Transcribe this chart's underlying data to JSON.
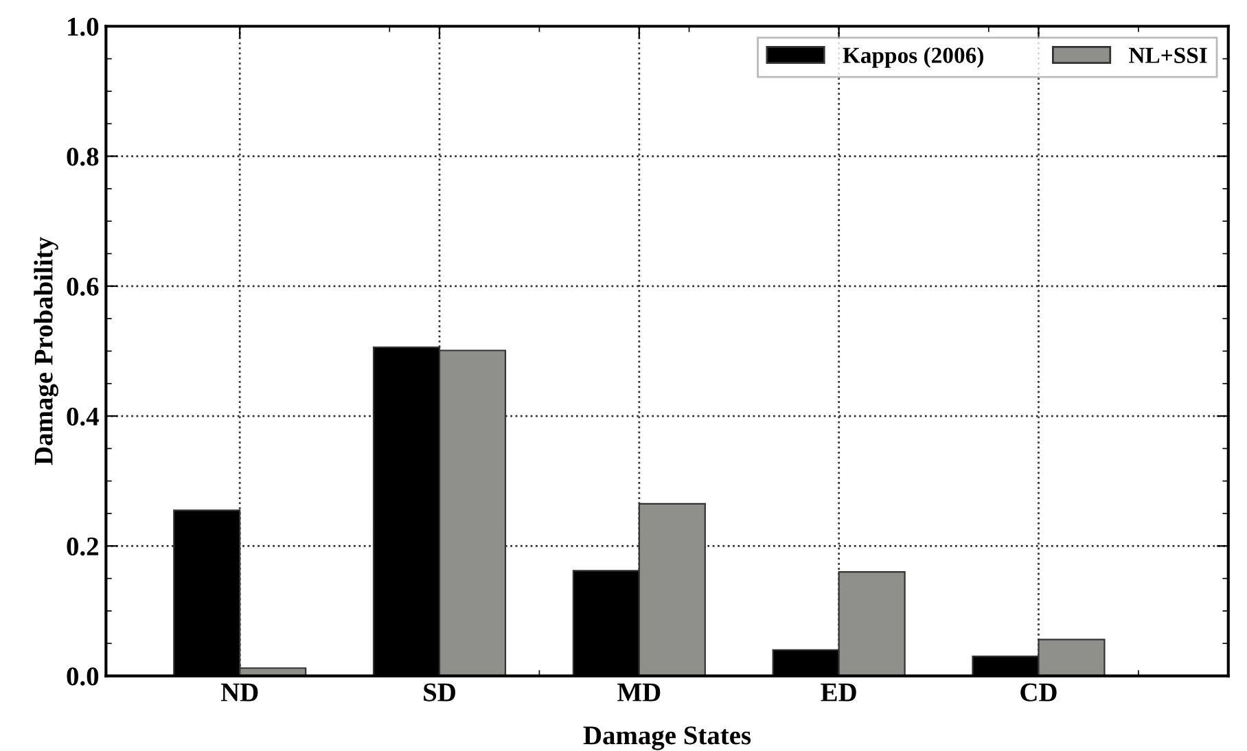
{
  "chart_data": {
    "type": "bar",
    "xlabel": "Damage States",
    "ylabel": "Damage Probability",
    "categories": [
      "ND",
      "SD",
      "MD",
      "ED",
      "CD"
    ],
    "series": [
      {
        "name": "Kappos (2006)",
        "color": "#000000",
        "values": [
          0.255,
          0.506,
          0.162,
          0.04,
          0.03
        ]
      },
      {
        "name": "NL+SSI",
        "color": "#8f8f8b",
        "values": [
          0.012,
          0.501,
          0.265,
          0.16,
          0.056
        ]
      }
    ],
    "ylim": [
      0,
      1.0
    ],
    "yticks": [
      {
        "value": 0,
        "label": "0.0"
      },
      0.2,
      0.4,
      0.6,
      0.8,
      {
        "value": 1.0,
        "label": "1.0"
      }
    ],
    "grid": true,
    "legend": "top right"
  }
}
